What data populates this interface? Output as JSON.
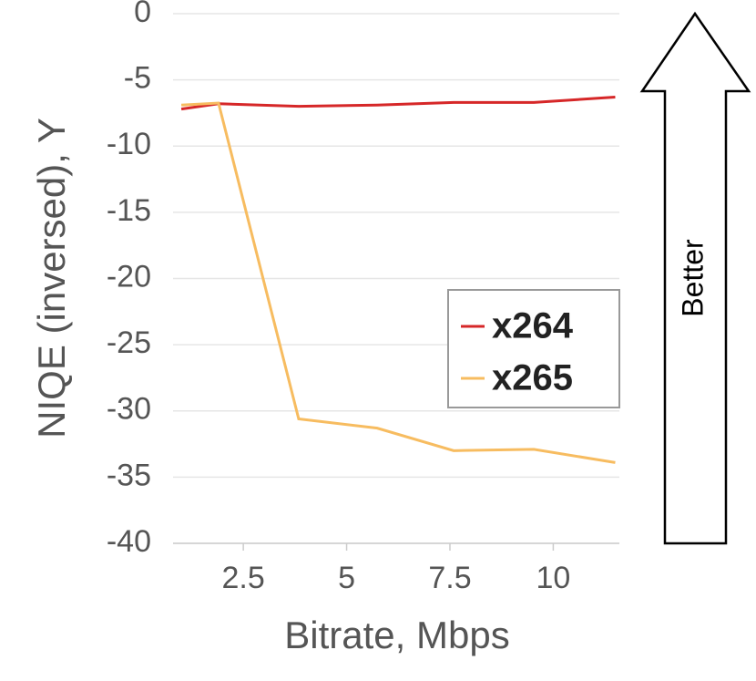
{
  "chart_data": {
    "type": "line",
    "x_label": "Bitrate, Mbps",
    "y_label": "NIQE (inversed), Y",
    "annotation": "Better",
    "xlim": [
      0.8,
      11.6
    ],
    "xticks": [
      2.5,
      5,
      7.5,
      10
    ],
    "ylim": [
      -40,
      0
    ],
    "yticks": [
      0,
      -5,
      -10,
      -15,
      -20,
      -25,
      -30,
      -35,
      -40
    ],
    "grid": true,
    "legend": "right",
    "series": [
      {
        "name": "x264",
        "color": "#d62728",
        "x": [
          1.0,
          1.9,
          3.84,
          5.74,
          7.59,
          9.53,
          11.5
        ],
        "values": [
          -7.2,
          -6.8,
          -7.0,
          -6.9,
          -6.7,
          -6.7,
          -6.3
        ]
      },
      {
        "name": "x265",
        "color": "#f7bc60",
        "x": [
          1.0,
          1.9,
          3.84,
          5.74,
          7.59,
          9.53,
          11.5
        ],
        "values": [
          -6.9,
          -6.75,
          -30.6,
          -31.3,
          -33.0,
          -32.9,
          -33.9
        ]
      }
    ]
  }
}
